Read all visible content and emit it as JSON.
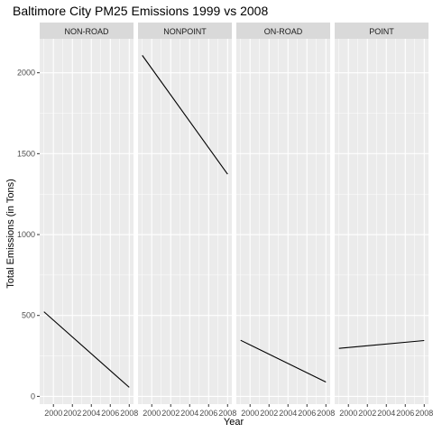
{
  "chart_data": {
    "type": "line",
    "title": "Baltimore City PM25 Emissions 1999 vs 2008",
    "xlabel": "Year",
    "ylabel": "Total Emissions (in Tons)",
    "x_ticks": [
      2000,
      2002,
      2004,
      2006,
      2008
    ],
    "y_ticks": [
      0,
      500,
      1000,
      1500,
      2000
    ],
    "xlim": [
      1998.55,
      2008.45
    ],
    "ylim": [
      -48,
      2210
    ],
    "grid": true,
    "legend": "none",
    "colors": {
      "panel_background": "#ebebeb",
      "strip_background": "#d9d9d9",
      "grid_major": "#ffffff",
      "line": "#000000"
    },
    "panels": [
      {
        "name": "NON-ROAD",
        "x": [
          1999,
          2008
        ],
        "y": [
          522.9,
          55.8
        ]
      },
      {
        "name": "NONPOINT",
        "x": [
          1999,
          2008
        ],
        "y": [
          2107.6,
          1373.2
        ]
      },
      {
        "name": "ON-ROAD",
        "x": [
          1999,
          2008
        ],
        "y": [
          346.8,
          88.3
        ]
      },
      {
        "name": "POINT",
        "x": [
          1999,
          2008
        ],
        "y": [
          296.8,
          344.98
        ]
      }
    ]
  }
}
